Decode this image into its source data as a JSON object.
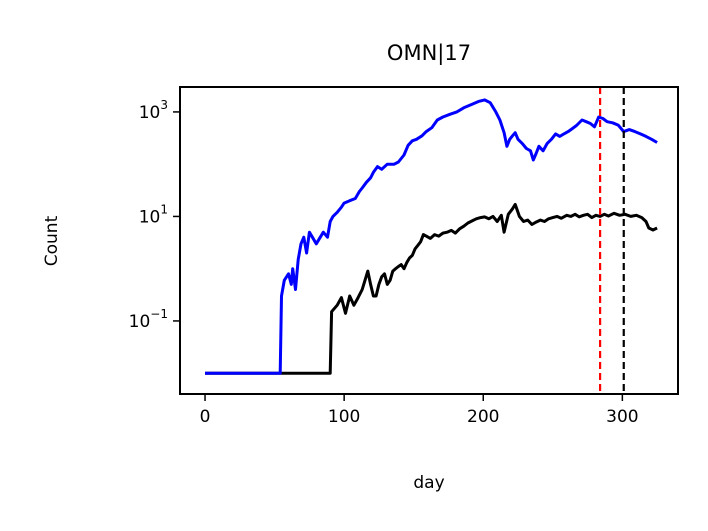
{
  "chart_data": {
    "type": "line",
    "title": "OMN|17",
    "xlabel": "day",
    "ylabel": "Count",
    "xlim": [
      -18,
      340
    ],
    "ylim": [
      0.004,
      3000
    ],
    "yscale": "log",
    "grid": false,
    "legend": "none",
    "x_ticks": [
      0,
      100,
      200,
      300
    ],
    "x_tick_labels": [
      "0",
      "100",
      "200",
      "300"
    ],
    "y_ticks": [
      0.1,
      10,
      1000
    ],
    "y_tick_labels": [
      {
        "base": "10",
        "exp": "−1"
      },
      {
        "base": "10",
        "exp": "1"
      },
      {
        "base": "10",
        "exp": "3"
      }
    ],
    "vlines": [
      {
        "x": 284,
        "color": "#ff0000",
        "style": "dashed"
      },
      {
        "x": 301,
        "color": "#000000",
        "style": "dashed"
      }
    ],
    "series": [
      {
        "color": "#0000ff",
        "points": [
          [
            0,
            0.01
          ],
          [
            54,
            0.01
          ],
          [
            55,
            0.3
          ],
          [
            57,
            0.6
          ],
          [
            60,
            0.8
          ],
          [
            62,
            0.5
          ],
          [
            63,
            1.0
          ],
          [
            65,
            0.4
          ],
          [
            67,
            1.5
          ],
          [
            69,
            3
          ],
          [
            71,
            4
          ],
          [
            73,
            2
          ],
          [
            75,
            5
          ],
          [
            80,
            3
          ],
          [
            85,
            5
          ],
          [
            88,
            4
          ],
          [
            90,
            8
          ],
          [
            92,
            10
          ],
          [
            95,
            12
          ],
          [
            98,
            15
          ],
          [
            100,
            18
          ],
          [
            104,
            20
          ],
          [
            108,
            22
          ],
          [
            111,
            30
          ],
          [
            113,
            35
          ],
          [
            116,
            45
          ],
          [
            119,
            55
          ],
          [
            121,
            70
          ],
          [
            124,
            90
          ],
          [
            127,
            80
          ],
          [
            131,
            100
          ],
          [
            136,
            100
          ],
          [
            139,
            110
          ],
          [
            143,
            150
          ],
          [
            146,
            230
          ],
          [
            149,
            280
          ],
          [
            152,
            300
          ],
          [
            156,
            350
          ],
          [
            159,
            420
          ],
          [
            163,
            500
          ],
          [
            167,
            700
          ],
          [
            171,
            800
          ],
          [
            176,
            900
          ],
          [
            181,
            1000
          ],
          [
            186,
            1200
          ],
          [
            192,
            1400
          ],
          [
            197,
            1600
          ],
          [
            201,
            1700
          ],
          [
            205,
            1500
          ],
          [
            209,
            1000
          ],
          [
            212,
            700
          ],
          [
            215,
            400
          ],
          [
            217,
            220
          ],
          [
            219,
            300
          ],
          [
            221,
            350
          ],
          [
            223,
            400
          ],
          [
            225,
            300
          ],
          [
            228,
            250
          ],
          [
            231,
            200
          ],
          [
            234,
            180
          ],
          [
            236,
            120
          ],
          [
            238,
            160
          ],
          [
            240,
            220
          ],
          [
            243,
            180
          ],
          [
            246,
            250
          ],
          [
            249,
            300
          ],
          [
            252,
            380
          ],
          [
            255,
            340
          ],
          [
            258,
            380
          ],
          [
            261,
            420
          ],
          [
            264,
            480
          ],
          [
            267,
            550
          ],
          [
            271,
            700
          ],
          [
            274,
            650
          ],
          [
            277,
            600
          ],
          [
            280,
            520
          ],
          [
            283,
            800
          ],
          [
            286,
            750
          ],
          [
            289,
            650
          ],
          [
            293,
            620
          ],
          [
            297,
            560
          ],
          [
            301,
            420
          ],
          [
            305,
            460
          ],
          [
            309,
            420
          ],
          [
            313,
            380
          ],
          [
            317,
            340
          ],
          [
            321,
            300
          ],
          [
            325,
            260
          ]
        ]
      },
      {
        "color": "#000000",
        "points": [
          [
            0,
            0.01
          ],
          [
            90,
            0.01
          ],
          [
            91,
            0.15
          ],
          [
            95,
            0.2
          ],
          [
            98,
            0.28
          ],
          [
            101,
            0.14
          ],
          [
            104,
            0.3
          ],
          [
            107,
            0.2
          ],
          [
            110,
            0.28
          ],
          [
            113,
            0.4
          ],
          [
            115,
            0.6
          ],
          [
            117,
            0.9
          ],
          [
            119,
            0.5
          ],
          [
            121,
            0.3
          ],
          [
            123,
            0.3
          ],
          [
            125,
            0.5
          ],
          [
            127,
            0.7
          ],
          [
            129,
            0.8
          ],
          [
            131,
            0.5
          ],
          [
            133,
            0.6
          ],
          [
            135,
            0.9
          ],
          [
            137,
            1.0
          ],
          [
            139,
            1.1
          ],
          [
            141,
            1.2
          ],
          [
            143,
            1.0
          ],
          [
            145,
            1.3
          ],
          [
            147,
            1.6
          ],
          [
            149,
            1.8
          ],
          [
            151,
            2.4
          ],
          [
            153,
            2.8
          ],
          [
            155,
            3.3
          ],
          [
            157,
            4.5
          ],
          [
            159,
            4.2
          ],
          [
            162,
            3.8
          ],
          [
            165,
            4.5
          ],
          [
            168,
            4.2
          ],
          [
            171,
            4.8
          ],
          [
            174,
            5.0
          ],
          [
            177,
            5.4
          ],
          [
            180,
            4.8
          ],
          [
            183,
            5.8
          ],
          [
            186,
            6.5
          ],
          [
            189,
            7.5
          ],
          [
            192,
            8.2
          ],
          [
            195,
            9.0
          ],
          [
            198,
            9.5
          ],
          [
            201,
            9.8
          ],
          [
            204,
            9.0
          ],
          [
            207,
            10.0
          ],
          [
            210,
            8.0
          ],
          [
            213,
            10.5
          ],
          [
            215,
            5.0
          ],
          [
            218,
            11.0
          ],
          [
            221,
            14.0
          ],
          [
            223,
            17.0
          ],
          [
            226,
            10.0
          ],
          [
            229,
            8.0
          ],
          [
            232,
            8.5
          ],
          [
            235,
            7.0
          ],
          [
            238,
            7.8
          ],
          [
            241,
            8.5
          ],
          [
            244,
            8.0
          ],
          [
            247,
            9.0
          ],
          [
            250,
            9.5
          ],
          [
            253,
            10.0
          ],
          [
            256,
            9.2
          ],
          [
            260,
            10.5
          ],
          [
            263,
            10.0
          ],
          [
            266,
            11.0
          ],
          [
            269,
            9.8
          ],
          [
            272,
            10.5
          ],
          [
            275,
            11.0
          ],
          [
            278,
            9.5
          ],
          [
            281,
            10.5
          ],
          [
            284,
            10.0
          ],
          [
            287,
            11.0
          ],
          [
            290,
            10.2
          ],
          [
            294,
            11.5
          ],
          [
            298,
            10.5
          ],
          [
            302,
            11.0
          ],
          [
            306,
            10.0
          ],
          [
            310,
            10.5
          ],
          [
            314,
            9.5
          ],
          [
            317,
            8.0
          ],
          [
            319,
            6.0
          ],
          [
            322,
            5.5
          ],
          [
            325,
            6.0
          ]
        ]
      }
    ]
  }
}
